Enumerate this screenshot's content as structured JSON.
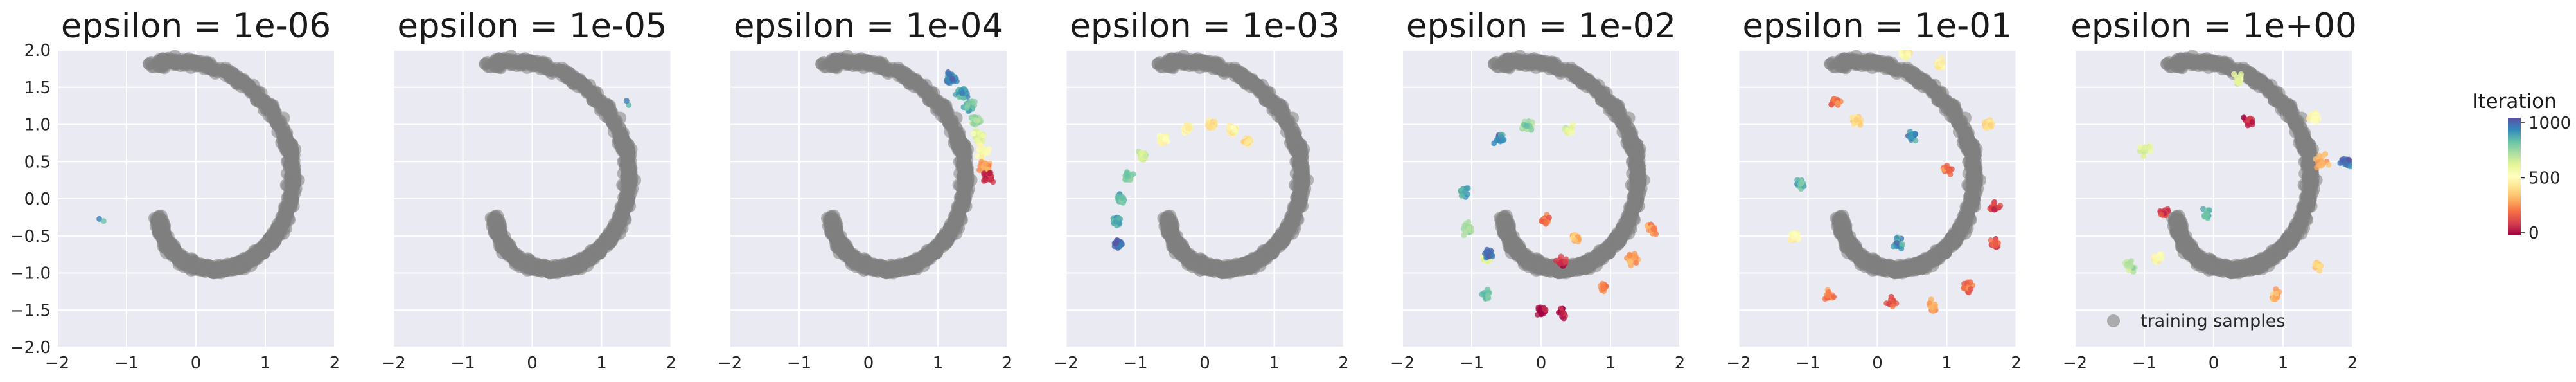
{
  "chart_data": {
    "type": "scatter",
    "panels": [
      {
        "title": "epsilon = 1e-06",
        "samples": [
          [
            -1.35,
            -0.32,
            0.85
          ]
        ]
      },
      {
        "title": "epsilon = 1e-05",
        "samples": [
          [
            1.38,
            1.25,
            0.9
          ]
        ]
      },
      {
        "title": "epsilon = 1e-04",
        "samples": [
          [
            1.2,
            1.62,
            0.9
          ],
          [
            1.35,
            1.42,
            0.86
          ],
          [
            1.45,
            1.25,
            0.8
          ],
          [
            1.55,
            1.05,
            0.72
          ],
          [
            1.6,
            0.85,
            0.6
          ],
          [
            1.65,
            0.62,
            0.5
          ],
          [
            1.68,
            0.42,
            0.3
          ],
          [
            1.72,
            0.3,
            0.1
          ]
        ]
      },
      {
        "title": "epsilon = 1e-03",
        "samples": [
          [
            -1.25,
            -0.6,
            0.95
          ],
          [
            -1.28,
            -0.3,
            0.85
          ],
          [
            -1.22,
            0.0,
            0.8
          ],
          [
            -1.1,
            0.3,
            0.75
          ],
          [
            -0.9,
            0.58,
            0.65
          ],
          [
            -0.6,
            0.8,
            0.5
          ],
          [
            -0.25,
            0.95,
            0.45
          ],
          [
            0.1,
            1.0,
            0.4
          ],
          [
            0.4,
            0.92,
            0.45
          ],
          [
            0.62,
            0.78,
            0.4
          ]
        ]
      },
      {
        "title": "epsilon = 1e-02",
        "samples": [
          [
            -1.1,
            0.1,
            0.85
          ],
          [
            -1.05,
            -0.4,
            0.7
          ],
          [
            -0.8,
            -0.8,
            0.6
          ],
          [
            -0.6,
            0.8,
            0.9
          ],
          [
            -0.2,
            1.0,
            0.75
          ],
          [
            0.4,
            0.95,
            0.6
          ],
          [
            0.5,
            -0.55,
            0.35
          ],
          [
            0.3,
            -0.85,
            0.1
          ],
          [
            0.05,
            -0.3,
            0.2
          ],
          [
            0.3,
            -1.55,
            0.05
          ],
          [
            0.0,
            -1.5,
            0.02
          ],
          [
            0.9,
            -1.2,
            0.25
          ],
          [
            1.3,
            -0.8,
            0.3
          ],
          [
            1.6,
            -0.4,
            0.25
          ],
          [
            -0.75,
            -0.75,
            0.95
          ],
          [
            -0.8,
            -1.3,
            0.8
          ]
        ]
      },
      {
        "title": "epsilon = 1e-01",
        "samples": [
          [
            -0.6,
            1.3,
            0.2
          ],
          [
            0.4,
            1.95,
            0.5
          ],
          [
            0.9,
            1.8,
            0.45
          ],
          [
            1.6,
            1.0,
            0.4
          ],
          [
            1.7,
            -0.1,
            0.1
          ],
          [
            1.7,
            -0.6,
            0.15
          ],
          [
            1.3,
            -1.2,
            0.2
          ],
          [
            0.8,
            -1.45,
            0.3
          ],
          [
            0.2,
            -1.4,
            0.15
          ],
          [
            -0.7,
            -1.3,
            0.25
          ],
          [
            -1.2,
            -0.5,
            0.5
          ],
          [
            -1.1,
            0.2,
            0.8
          ],
          [
            -0.3,
            1.05,
            0.4
          ],
          [
            0.5,
            0.85,
            0.9
          ],
          [
            0.3,
            -0.6,
            0.9
          ],
          [
            1.0,
            0.4,
            0.2
          ]
        ]
      },
      {
        "title": "epsilon = 1e+00",
        "samples": [
          [
            0.35,
            1.6,
            0.6
          ],
          [
            1.45,
            1.1,
            0.5
          ],
          [
            1.55,
            0.5,
            0.3
          ],
          [
            1.9,
            0.5,
            0.95
          ],
          [
            -0.7,
            -0.2,
            0.1
          ],
          [
            -1.2,
            -0.9,
            0.7
          ],
          [
            -1.0,
            0.65,
            0.6
          ],
          [
            0.5,
            1.05,
            0.1
          ],
          [
            -0.8,
            -0.8,
            0.5
          ],
          [
            1.5,
            -0.9,
            0.4
          ],
          [
            0.9,
            -1.3,
            0.3
          ],
          [
            -0.1,
            -0.2,
            0.8
          ]
        ]
      }
    ],
    "xlim": [
      -2,
      2
    ],
    "ylim": [
      -2,
      2
    ],
    "xticks": [
      "−2",
      "−1",
      "0",
      "1",
      "2"
    ],
    "yticks": [
      "2.0",
      "1.5",
      "1.0",
      "0.5",
      "0.0",
      "−0.5",
      "−1.0",
      "−1.5",
      "−2.0"
    ],
    "legend": {
      "label": "training samples",
      "placement": "lower-right (last panel)"
    },
    "colorbar": {
      "title": "Iteration",
      "ticks": [
        "1000",
        "500",
        "0"
      ],
      "range": [
        0,
        1000
      ],
      "colormap": "Spectral"
    },
    "grid": true,
    "colors": {
      "plot_background": "#eaeaf2",
      "grid": "#ffffff",
      "training_samples": "#808080"
    }
  }
}
